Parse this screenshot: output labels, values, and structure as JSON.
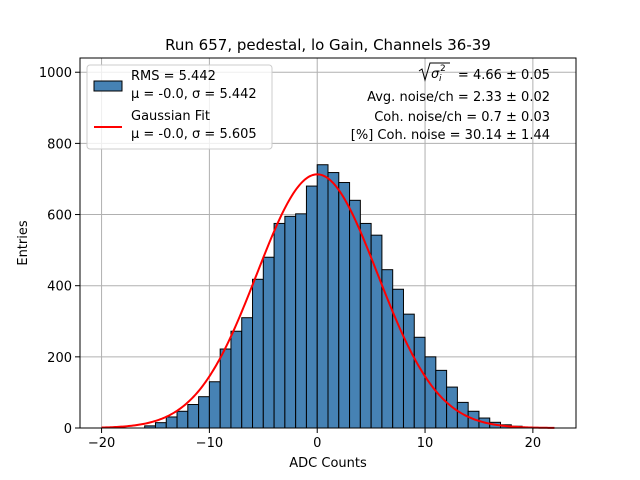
{
  "chart_data": {
    "type": "bar",
    "title": "Run 657, pedestal, lo Gain, Channels 36-39",
    "xlabel": "ADC Counts",
    "ylabel": "Entries",
    "xlim": [
      -22,
      24
    ],
    "ylim": [
      0,
      1040
    ],
    "grid": true,
    "xticks": [
      -20,
      -10,
      0,
      10,
      20
    ],
    "yticks": [
      0,
      200,
      400,
      600,
      800,
      1000
    ],
    "xtick_labels": [
      "−20",
      "−10",
      "0",
      "10",
      "20"
    ],
    "ytick_labels": [
      "0",
      "200",
      "400",
      "600",
      "800",
      "1000"
    ],
    "bin_start": -16,
    "bin_width": 1,
    "histogram_values": [
      6,
      15,
      31,
      47,
      66,
      88,
      130,
      222,
      272,
      310,
      418,
      480,
      575,
      595,
      602,
      680,
      740,
      718,
      690,
      640,
      575,
      542,
      445,
      390,
      320,
      255,
      200,
      162,
      115,
      72,
      47,
      28,
      16,
      9,
      5,
      2,
      1,
      0
    ],
    "histogram_color": "#4682b4",
    "fit": {
      "mu": 0.0,
      "sigma": 5.605,
      "amplitude": 713,
      "x_range": [
        -20,
        22
      ],
      "color": "#ff0000"
    },
    "legend": {
      "position": "upper-left",
      "entries": [
        {
          "line1": "RMS = 5.442",
          "line2": "μ = -0.0, σ = 5.442"
        },
        {
          "line1": "Gaussian Fit",
          "line2": "μ = -0.0, σ = 5.605"
        }
      ]
    },
    "annotations": [
      "= 4.66 ± 0.05",
      "Avg. noise/ch = 2.33 ± 0.02",
      "Coh. noise/ch = 0.7 ± 0.03",
      "[%] Coh. noise = 30.14 ± 1.44"
    ]
  }
}
